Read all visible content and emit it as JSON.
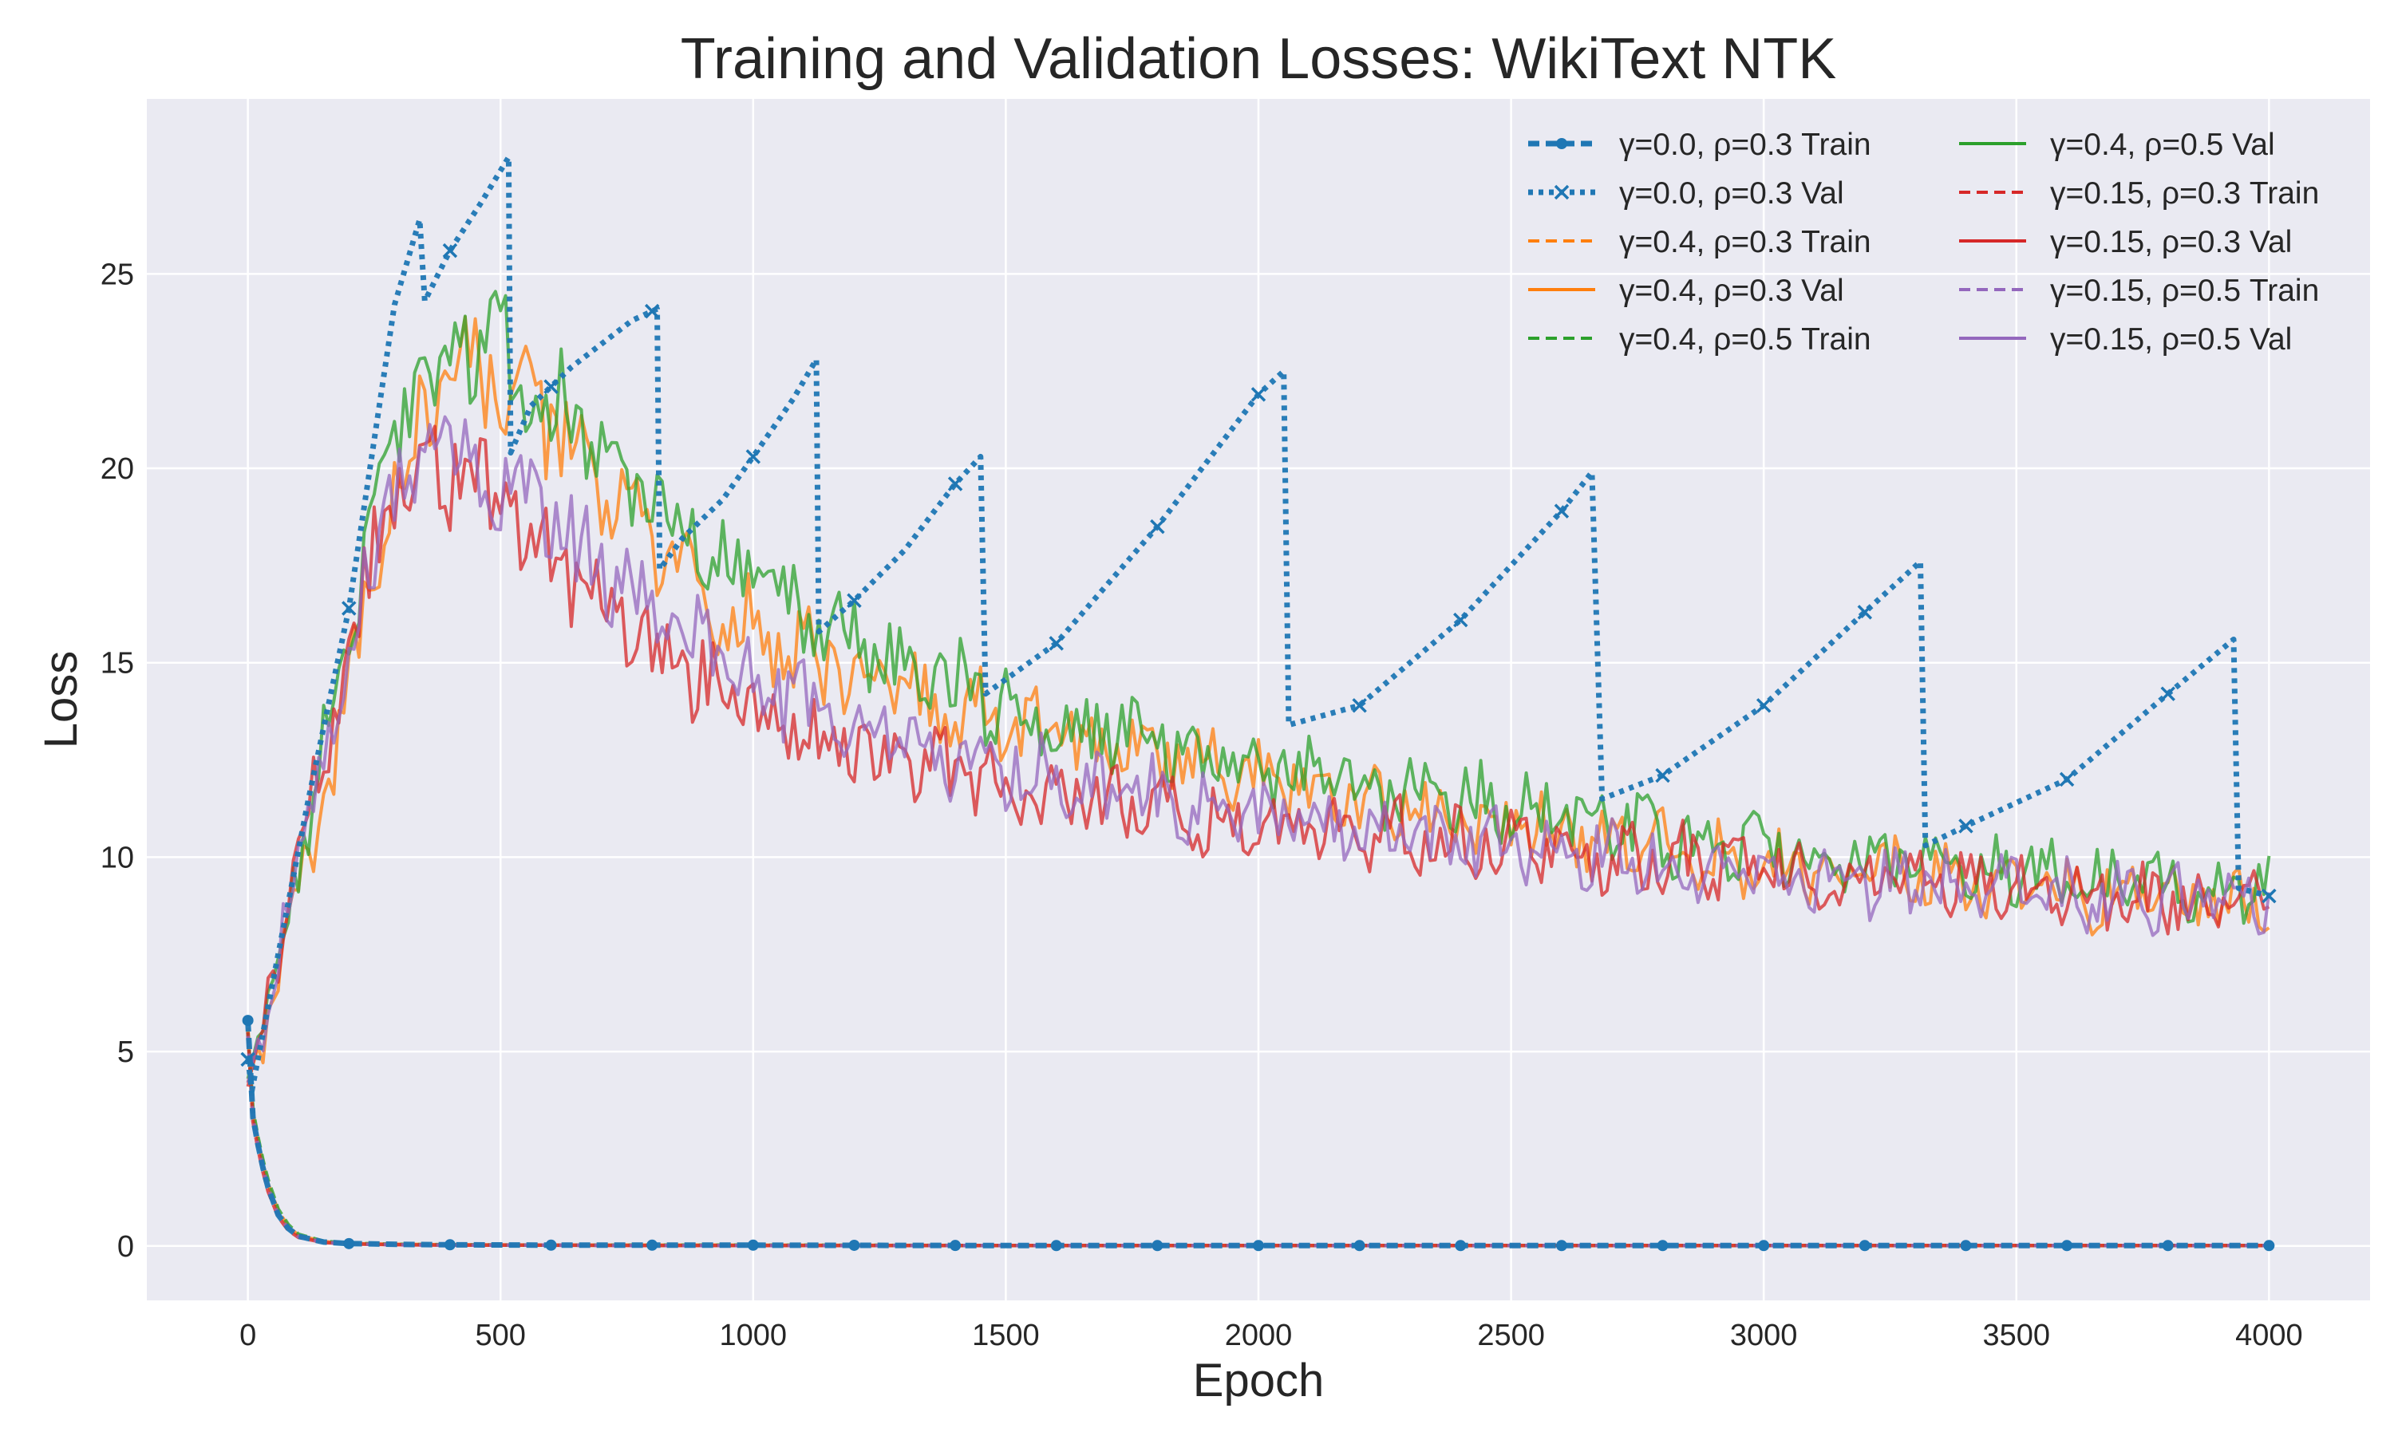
{
  "chart_data": {
    "type": "line",
    "title": "Training and Validation Losses: WikiText NTK",
    "xlabel": "Epoch",
    "ylabel": "Loss",
    "xlim": [
      -200,
      4200
    ],
    "ylim": [
      -1.4,
      29.5
    ],
    "xticks": [
      0,
      500,
      1000,
      1500,
      2000,
      2500,
      3000,
      3500,
      4000
    ],
    "xtick_labels": [
      "0",
      "500",
      "1000",
      "1500",
      "2000",
      "2500",
      "3000",
      "3500",
      "4000"
    ],
    "yticks": [
      0,
      5,
      10,
      15,
      20,
      25
    ],
    "ytick_labels": [
      "0",
      "5",
      "10",
      "15",
      "20",
      "25"
    ],
    "grid": true,
    "legend": {
      "placement": "top-right",
      "columns": 2
    },
    "series": [
      {
        "name": "γ=0.0, ρ=0.3 Train",
        "color": "#1f77b4",
        "style": "dashed",
        "marker": "dot",
        "role": "train",
        "x": [
          0,
          10,
          20,
          30,
          40,
          60,
          80,
          100,
          150,
          200,
          300,
          400,
          600,
          800,
          1000,
          1500,
          2000,
          2500,
          3000,
          3500,
          4000
        ],
        "values": [
          5.8,
          3.3,
          2.6,
          2.0,
          1.5,
          0.8,
          0.45,
          0.25,
          0.1,
          0.06,
          0.04,
          0.03,
          0.02,
          0.02,
          0.02,
          0.01,
          0.01,
          0.01,
          0.01,
          0.01,
          0.01
        ]
      },
      {
        "name": "γ=0.0, ρ=0.3 Val",
        "color": "#1f77b4",
        "style": "dotted",
        "marker": "x",
        "role": "val-sawtooth",
        "x": [
          0,
          8,
          60,
          120,
          200,
          290,
          340,
          350,
          400,
          460,
          516,
          520,
          560,
          640,
          700,
          760,
          810,
          815,
          860,
          940,
          1000,
          1080,
          1125,
          1130,
          1200,
          1300,
          1400,
          1450,
          1460,
          1600,
          1800,
          2000,
          2050,
          2060,
          2200,
          2400,
          2600,
          2660,
          2680,
          2800,
          3000,
          3200,
          3310,
          3320,
          3400,
          3600,
          3800,
          3930,
          3940,
          4000
        ],
        "values": [
          4.8,
          4.0,
          7.5,
          11.5,
          16.4,
          24.2,
          26.4,
          24.3,
          25.6,
          26.8,
          28.0,
          20.4,
          21.6,
          22.6,
          23.2,
          23.8,
          24.1,
          17.4,
          18.2,
          19.2,
          20.3,
          21.8,
          22.8,
          15.8,
          16.6,
          17.9,
          19.6,
          20.3,
          14.2,
          15.5,
          18.5,
          21.9,
          22.5,
          13.4,
          13.9,
          16.1,
          18.9,
          19.9,
          11.5,
          12.1,
          13.9,
          16.3,
          17.6,
          10.3,
          10.8,
          12.0,
          14.2,
          15.6,
          9.2,
          9.0
        ]
      },
      {
        "name": "γ=0.4, ρ=0.3 Train",
        "color": "#ff7f0e",
        "style": "dashed",
        "marker": "",
        "role": "train",
        "x": [
          0,
          10,
          20,
          30,
          40,
          60,
          80,
          100,
          150,
          200,
          300,
          400,
          600,
          800,
          1000,
          1500,
          2000,
          2500,
          3000,
          3500,
          4000
        ],
        "values": [
          5.6,
          3.4,
          2.7,
          2.1,
          1.6,
          0.9,
          0.5,
          0.27,
          0.11,
          0.06,
          0.04,
          0.03,
          0.02,
          0.02,
          0.02,
          0.01,
          0.01,
          0.01,
          0.01,
          0.01,
          0.01
        ]
      },
      {
        "name": "γ=0.4, ρ=0.3 Val",
        "color": "#ff7f0e",
        "style": "solid",
        "marker": "",
        "role": "val",
        "x": [
          0,
          50,
          100,
          150,
          200,
          250,
          300,
          350,
          400,
          450,
          500,
          600,
          700,
          800,
          900,
          1000,
          1200,
          1400,
          1600,
          1800,
          2000,
          2200,
          2400,
          2600,
          2800,
          3000,
          3200,
          3400,
          3600,
          3800,
          4000
        ],
        "values": [
          4.2,
          6.5,
          9.0,
          11.5,
          14.0,
          17.5,
          20.0,
          21.3,
          22.2,
          22.5,
          22.2,
          21.0,
          19.5,
          18.0,
          16.8,
          15.8,
          14.6,
          13.8,
          13.2,
          12.6,
          12.1,
          11.5,
          11.0,
          10.6,
          10.2,
          9.9,
          9.6,
          9.4,
          9.1,
          8.9,
          8.7
        ]
      },
      {
        "name": "γ=0.4, ρ=0.5 Train",
        "color": "#2ca02c",
        "style": "dashed",
        "marker": "",
        "role": "train",
        "x": [
          0,
          10,
          20,
          30,
          40,
          60,
          80,
          100,
          150,
          200,
          300,
          400,
          600,
          800,
          1000,
          1500,
          2000,
          2500,
          3000,
          3500,
          4000
        ],
        "values": [
          5.5,
          3.5,
          2.8,
          2.2,
          1.7,
          0.95,
          0.55,
          0.3,
          0.12,
          0.07,
          0.04,
          0.03,
          0.02,
          0.02,
          0.02,
          0.01,
          0.01,
          0.01,
          0.01,
          0.01,
          0.01
        ]
      },
      {
        "name": "γ=0.4, ρ=0.5 Val",
        "color": "#2ca02c",
        "style": "solid",
        "marker": "",
        "role": "val",
        "x": [
          0,
          50,
          100,
          150,
          200,
          250,
          300,
          350,
          400,
          450,
          500,
          600,
          700,
          800,
          900,
          1000,
          1200,
          1400,
          1600,
          1800,
          2000,
          2200,
          2400,
          2600,
          2800,
          3000,
          3200,
          3400,
          3600,
          3800,
          4000
        ],
        "values": [
          4.3,
          7.0,
          10.0,
          12.8,
          15.5,
          19.0,
          21.2,
          22.4,
          23.0,
          23.2,
          22.9,
          21.8,
          20.6,
          19.2,
          18.0,
          16.9,
          15.5,
          14.4,
          13.6,
          12.9,
          12.3,
          11.9,
          11.5,
          11.1,
          10.6,
          10.2,
          9.9,
          9.7,
          9.5,
          9.3,
          9.2
        ]
      },
      {
        "name": "γ=0.15, ρ=0.3 Train",
        "color": "#d62728",
        "style": "dashed",
        "marker": "",
        "role": "train",
        "x": [
          0,
          10,
          20,
          30,
          40,
          60,
          80,
          100,
          150,
          200,
          300,
          400,
          600,
          800,
          1000,
          1500,
          2000,
          2500,
          3000,
          3500,
          4000
        ],
        "values": [
          5.5,
          3.2,
          2.5,
          1.9,
          1.4,
          0.75,
          0.4,
          0.22,
          0.09,
          0.05,
          0.03,
          0.02,
          0.02,
          0.01,
          0.01,
          0.01,
          0.01,
          0.01,
          0.01,
          0.01,
          0.01
        ]
      },
      {
        "name": "γ=0.15, ρ=0.3 Val",
        "color": "#d62728",
        "style": "solid",
        "marker": "",
        "role": "val",
        "x": [
          0,
          50,
          100,
          150,
          200,
          250,
          300,
          350,
          400,
          450,
          500,
          600,
          700,
          800,
          900,
          1000,
          1200,
          1400,
          1600,
          1800,
          2000,
          2200,
          2400,
          2600,
          2800,
          3000,
          3200,
          3400,
          3600,
          3800,
          4000
        ],
        "values": [
          4.1,
          7.0,
          10.0,
          12.6,
          15.0,
          17.8,
          19.3,
          19.9,
          19.9,
          19.6,
          19.1,
          17.7,
          16.4,
          15.3,
          14.5,
          13.8,
          12.8,
          12.1,
          11.6,
          11.2,
          10.9,
          10.7,
          10.4,
          10.1,
          9.9,
          9.7,
          9.5,
          9.3,
          9.1,
          8.9,
          8.8
        ]
      },
      {
        "name": "γ=0.15, ρ=0.5 Train",
        "color": "#9467bd",
        "style": "dashed",
        "marker": "",
        "role": "train",
        "x": [
          0,
          10,
          20,
          30,
          40,
          60,
          80,
          100,
          150,
          200,
          300,
          400,
          600,
          800,
          1000,
          1500,
          2000,
          2500,
          3000,
          3500,
          4000
        ],
        "values": [
          5.4,
          3.3,
          2.6,
          2.0,
          1.5,
          0.8,
          0.45,
          0.24,
          0.1,
          0.05,
          0.03,
          0.02,
          0.02,
          0.01,
          0.01,
          0.01,
          0.01,
          0.01,
          0.01,
          0.01,
          0.01
        ]
      },
      {
        "name": "γ=0.15, ρ=0.5 Val",
        "color": "#9467bd",
        "style": "solid",
        "marker": "",
        "role": "val",
        "x": [
          0,
          50,
          100,
          150,
          200,
          250,
          300,
          350,
          400,
          450,
          500,
          600,
          700,
          800,
          900,
          1000,
          1200,
          1400,
          1600,
          1800,
          2000,
          2200,
          2400,
          2600,
          2800,
          3000,
          3200,
          3400,
          3600,
          3800,
          4000
        ],
        "values": [
          4.2,
          7.0,
          10.0,
          12.8,
          15.2,
          18.0,
          19.6,
          20.3,
          20.5,
          20.3,
          19.8,
          18.5,
          17.3,
          16.2,
          15.4,
          14.6,
          13.4,
          12.6,
          12.0,
          11.5,
          11.0,
          10.7,
          10.4,
          10.1,
          9.8,
          9.6,
          9.4,
          9.2,
          9.0,
          8.9,
          8.8
        ]
      }
    ]
  }
}
